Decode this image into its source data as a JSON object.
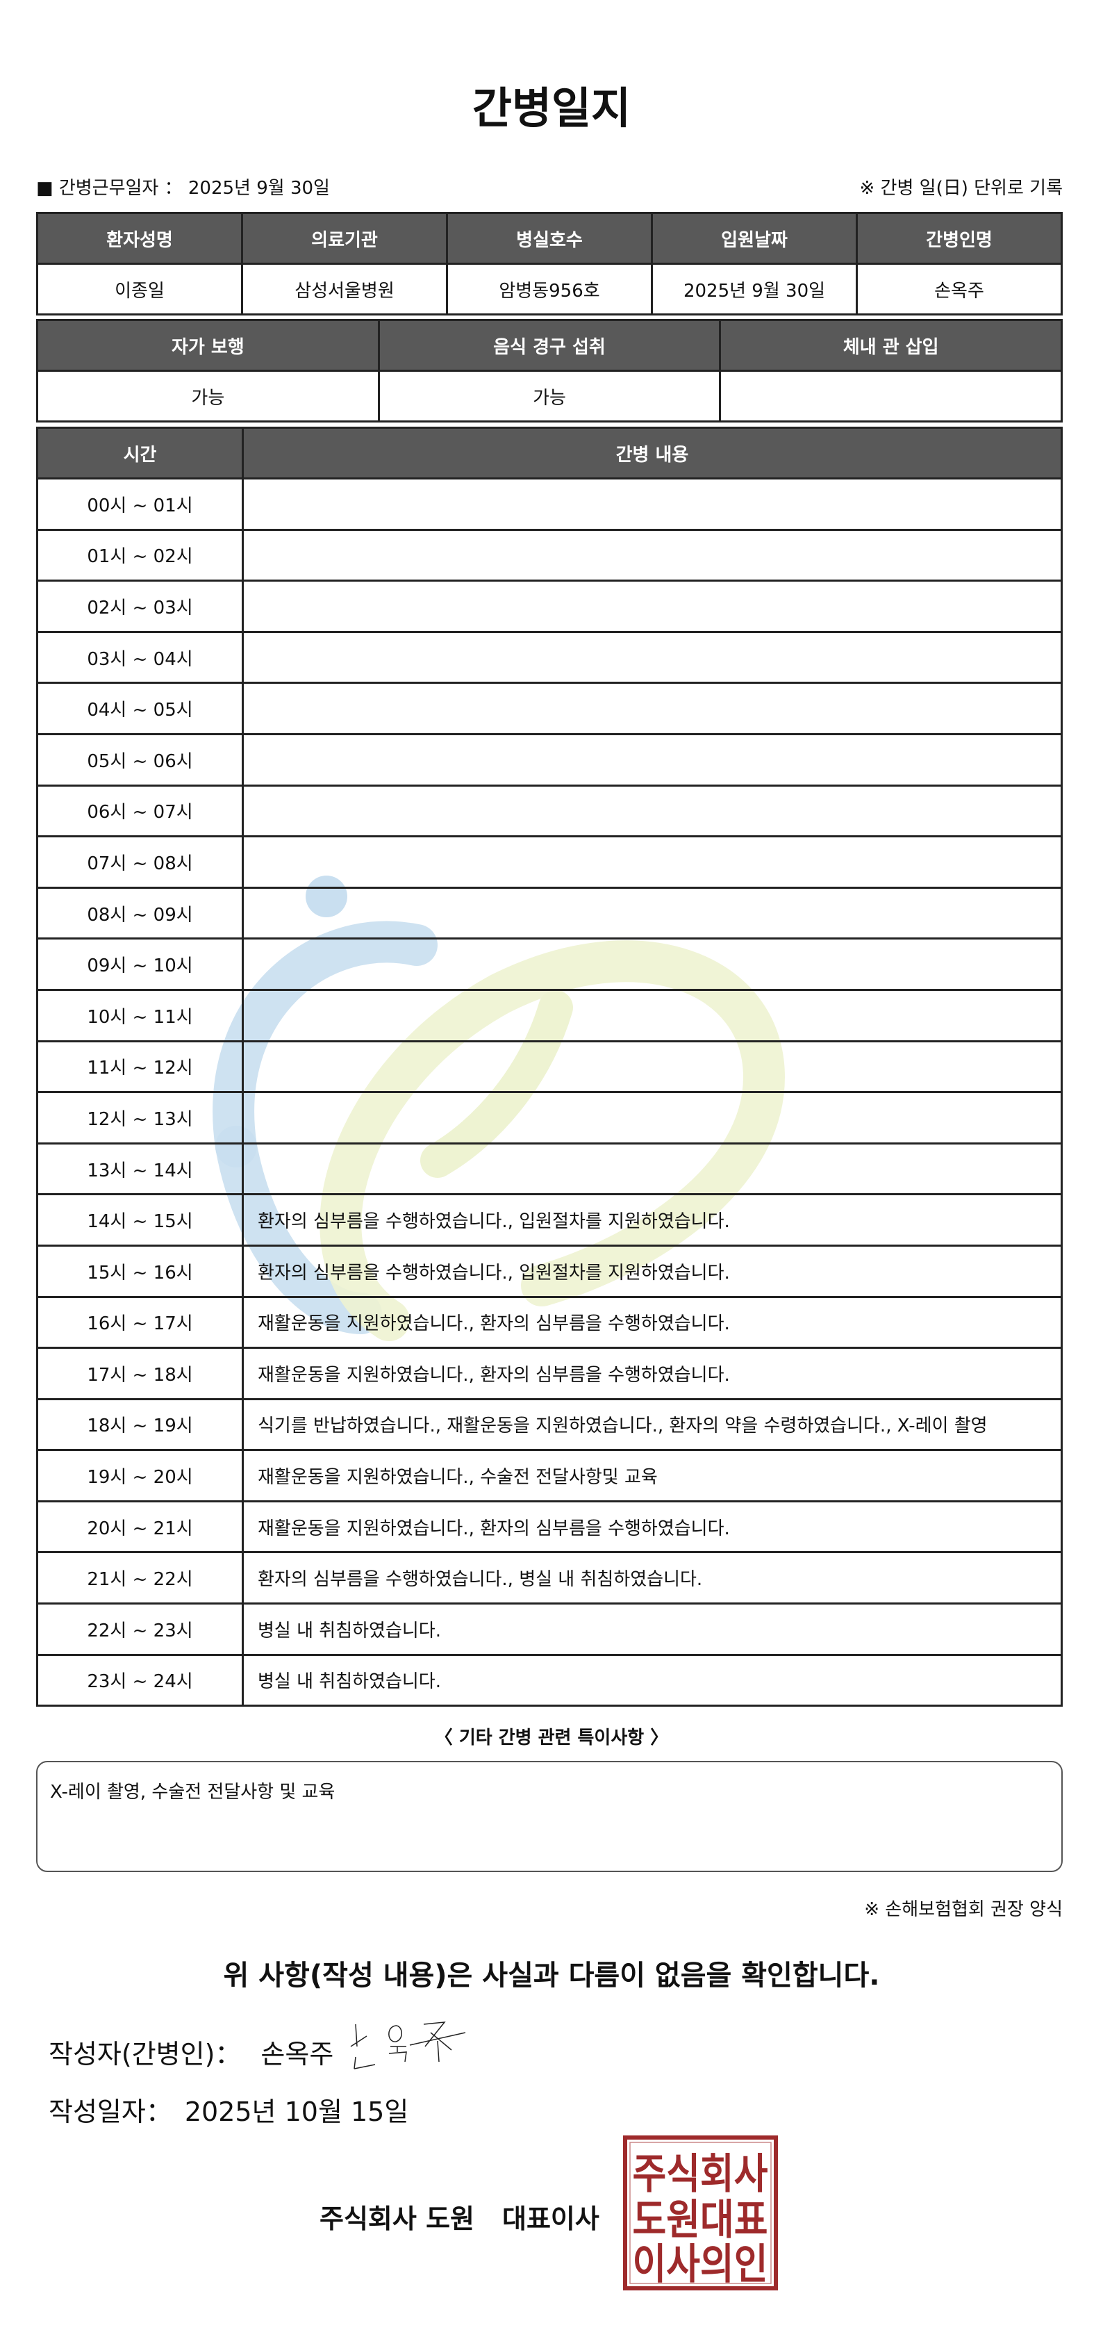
{
  "title": "간병일지",
  "info": {
    "work_date_label": "■ 간병근무일자 ：",
    "work_date": "2025년 9월 30일",
    "note": "※ 간병 일(日) 단위로 기록"
  },
  "patient_table": {
    "headers": [
      "환자성명",
      "의료기관",
      "병실호수",
      "입원날짜",
      "간병인명"
    ],
    "values": [
      "이종일",
      "삼성서울병원",
      "암병동956호",
      "2025년 9월 30일",
      "손옥주"
    ]
  },
  "status_table": {
    "headers": [
      "자가 보행",
      "음식 경구 섭취",
      "체내 관 삽입"
    ],
    "values": [
      "가능",
      "가능",
      ""
    ]
  },
  "log_table": {
    "headers": [
      "시간",
      "간병 내용"
    ],
    "rows": [
      {
        "time": "00시 ~ 01시",
        "content": ""
      },
      {
        "time": "01시 ~ 02시",
        "content": ""
      },
      {
        "time": "02시 ~ 03시",
        "content": ""
      },
      {
        "time": "03시 ~ 04시",
        "content": ""
      },
      {
        "time": "04시 ~ 05시",
        "content": ""
      },
      {
        "time": "05시 ~ 06시",
        "content": ""
      },
      {
        "time": "06시 ~ 07시",
        "content": ""
      },
      {
        "time": "07시 ~ 08시",
        "content": ""
      },
      {
        "time": "08시 ~ 09시",
        "content": ""
      },
      {
        "time": "09시 ~ 10시",
        "content": ""
      },
      {
        "time": "10시 ~ 11시",
        "content": ""
      },
      {
        "time": "11시 ~ 12시",
        "content": ""
      },
      {
        "time": "12시 ~ 13시",
        "content": ""
      },
      {
        "time": "13시 ~ 14시",
        "content": ""
      },
      {
        "time": "14시 ~ 15시",
        "content": "환자의 심부름을 수행하였습니다., 입원절차를 지원하였습니다."
      },
      {
        "time": "15시 ~ 16시",
        "content": "환자의 심부름을 수행하였습니다., 입원절차를 지원하였습니다."
      },
      {
        "time": "16시 ~ 17시",
        "content": "재활운동을 지원하였습니다., 환자의 심부름을 수행하였습니다."
      },
      {
        "time": "17시 ~ 18시",
        "content": "재활운동을 지원하였습니다., 환자의 심부름을 수행하였습니다."
      },
      {
        "time": "18시 ~ 19시",
        "content": "식기를 반납하였습니다., 재활운동을 지원하였습니다., 환자의 약을 수령하였습니다., X-레이 촬영"
      },
      {
        "time": "19시 ~ 20시",
        "content": "재활운동을 지원하였습니다., 수술전 전달사항및 교육"
      },
      {
        "time": "20시 ~ 21시",
        "content": "재활운동을 지원하였습니다., 환자의 심부름을 수행하였습니다."
      },
      {
        "time": "21시 ~ 22시",
        "content": "환자의 심부름을 수행하였습니다., 병실 내 취침하였습니다."
      },
      {
        "time": "22시 ~ 23시",
        "content": "병실 내 취침하였습니다."
      },
      {
        "time": "23시 ~ 24시",
        "content": "병실 내 취침하였습니다."
      }
    ]
  },
  "notes": {
    "title": "〈 기타 간병 관련 특이사항 〉",
    "content": "X-레이 촬영, 수술전 전달사항 및 교육"
  },
  "form_note": "※ 손해보험협회 권장 양식",
  "confirmation": "위 사항(작성 내용)은 사실과 다름이 없음을 확인합니다.",
  "writer": {
    "label": "작성자(간병인)：",
    "name": "손옥주",
    "signature": "손옥주"
  },
  "written_date": {
    "label": "작성일자：",
    "value": "2025년 10월 15일"
  },
  "company": {
    "name": "주식회사 도원",
    "title": "대표이사"
  },
  "stamp": {
    "text": [
      "주식회사",
      "도원대표",
      "이사의인"
    ],
    "color": "#9e2a2b"
  },
  "colors": {
    "header_bg": "#595959",
    "watermark_blue": "#c9dff0",
    "watermark_green": "#eef3d2"
  }
}
